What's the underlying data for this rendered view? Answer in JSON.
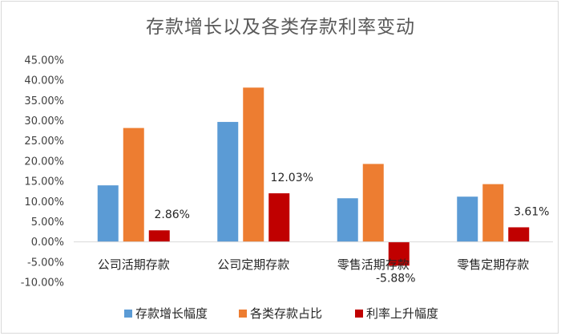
{
  "chart_data": {
    "type": "bar",
    "title": "存款增长以及各类存款利率变动",
    "categories": [
      "公司活期存款",
      "公司定期存款",
      "零售活期存款",
      "零售定期存款"
    ],
    "series": [
      {
        "name": "存款增长幅度",
        "color": "#5b9bd5",
        "values": [
          14.0,
          29.7,
          10.8,
          11.2
        ]
      },
      {
        "name": "各类存款占比",
        "color": "#ed7d31",
        "values": [
          28.2,
          38.2,
          19.3,
          14.3
        ]
      },
      {
        "name": "利率上升幅度",
        "color": "#c00000",
        "values": [
          2.86,
          12.03,
          -5.88,
          3.61
        ]
      }
    ],
    "data_labels": {
      "series": "利率上升幅度",
      "labels": [
        "2.86%",
        "12.03%",
        "-5.88%",
        "3.61%"
      ]
    },
    "yticks": [
      "-10.00%",
      "-5.00%",
      "0.00%",
      "5.00%",
      "10.00%",
      "15.00%",
      "20.00%",
      "25.00%",
      "30.00%",
      "35.00%",
      "40.00%",
      "45.00%"
    ],
    "ylim": [
      -10,
      45
    ],
    "xlabel": "",
    "ylabel": "",
    "legend": "bottom",
    "grid": false
  }
}
